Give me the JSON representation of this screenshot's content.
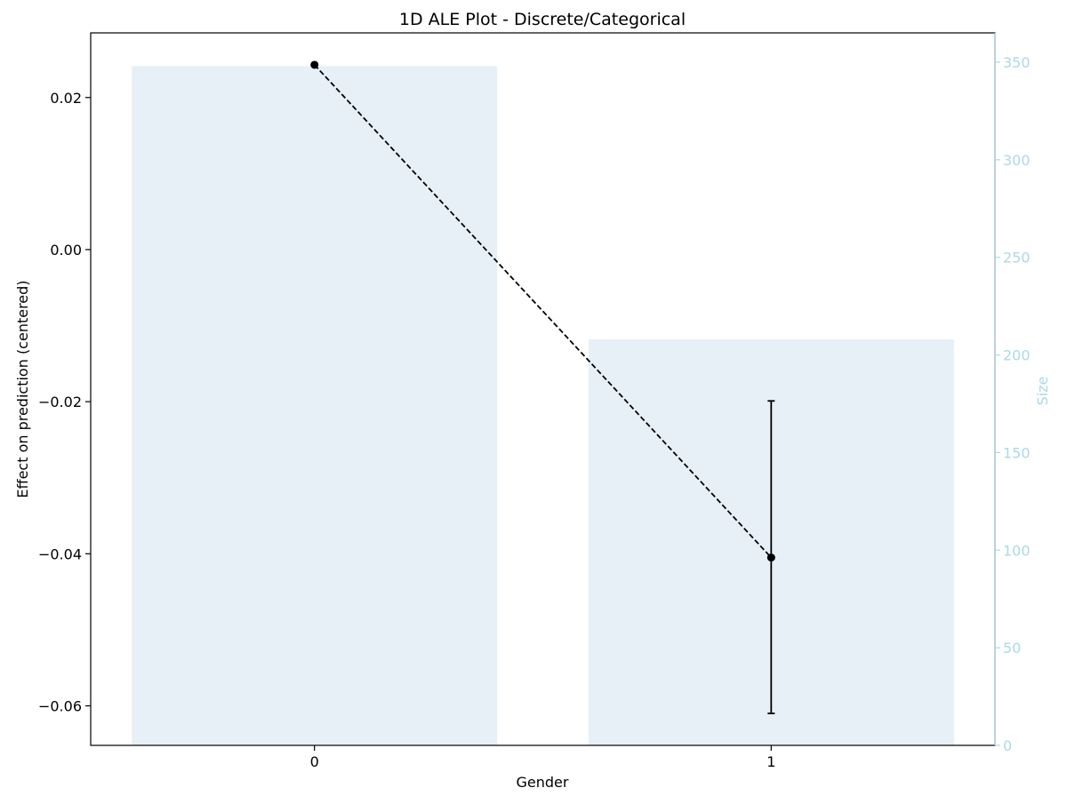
{
  "chart_data": {
    "type": "bar",
    "title": "1D ALE Plot - Discrete/Categorical",
    "xlabel": "Gender",
    "ylabel": "Effect on prediction (centered)",
    "ylabel_right": "Size",
    "categories": [
      "0",
      "1"
    ],
    "ale": {
      "values": [
        0.0243,
        -0.0405
      ],
      "error_low": [
        null,
        -0.061
      ],
      "error_high": [
        null,
        -0.0199
      ]
    },
    "size": {
      "values": [
        348,
        208
      ]
    },
    "ylim": [
      -0.0652,
      0.0285
    ],
    "ylim_right": [
      0,
      365
    ],
    "yticks": [
      0.02,
      0.0,
      -0.02,
      -0.04,
      -0.06
    ],
    "ytick_labels": [
      "0.02",
      "0.00",
      "−0.02",
      "−0.04",
      "−0.06"
    ],
    "yticks_right": [
      0,
      50,
      100,
      150,
      200,
      250,
      300,
      350
    ],
    "ytick_labels_right": [
      "0",
      "50",
      "100",
      "150",
      "200",
      "250",
      "300",
      "350"
    ],
    "grid": false,
    "colors": {
      "bars": "#e7eff7",
      "line": "#000000",
      "right_axis": "#add8e6",
      "axis": "#000000"
    }
  }
}
